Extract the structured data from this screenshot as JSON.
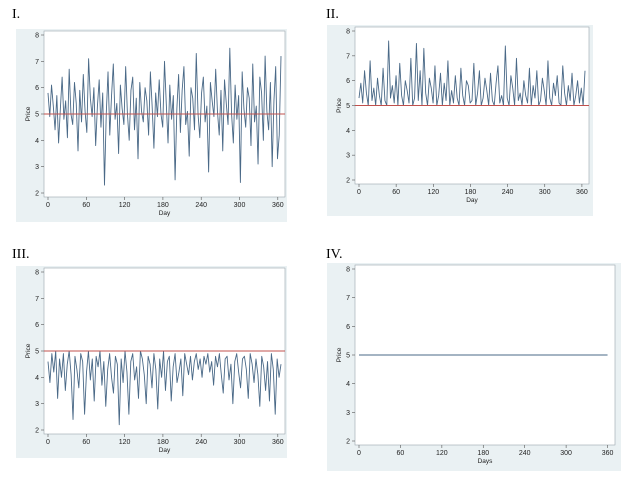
{
  "colors": {
    "outer_bg": "#eaf1f3",
    "plot_bg": "#ffffff",
    "series": "#4a6987",
    "reference": "#c0504d"
  },
  "chart_data": [
    {
      "type": "line",
      "panel_label": "I.",
      "xlabel": "Day",
      "ylabel": "Price",
      "xlim": [
        0,
        365
      ],
      "ylim": [
        2,
        8
      ],
      "xticks": [
        0,
        60,
        120,
        180,
        240,
        300,
        360
      ],
      "yticks": [
        2,
        3,
        4,
        5,
        6,
        7,
        8
      ],
      "reference_line": 5,
      "grid": false,
      "series": [
        {
          "values": [
            5.8,
            4.9,
            6.1,
            5.3,
            4.4,
            5.7,
            3.9,
            5.2,
            6.4,
            4.8,
            5.5,
            4.1,
            6.7,
            5.0,
            4.6,
            6.2,
            5.4,
            3.6,
            5.9,
            4.7,
            6.5,
            5.1,
            4.3,
            7.1,
            5.6,
            4.9,
            6.0,
            3.8,
            5.3,
            6.3,
            4.5,
            5.8,
            2.3,
            5.0,
            6.6,
            4.2,
            5.7,
            6.9,
            4.8,
            5.4,
            3.5,
            6.1,
            5.2,
            4.6,
            6.8,
            5.0,
            4.0,
            5.9,
            6.4,
            4.4,
            5.6,
            3.3,
            6.2,
            5.1,
            4.7,
            6.0,
            5.5,
            4.2,
            6.6,
            5.3,
            3.7,
            5.8,
            4.9,
            6.3,
            5.0,
            4.5,
            7.0,
            5.4,
            3.9,
            6.1,
            4.8,
            5.7,
            2.5,
            5.2,
            6.5,
            4.3,
            5.9,
            6.8,
            4.6,
            5.1,
            3.4,
            6.0,
            5.6,
            4.4,
            7.3,
            5.0,
            4.1,
            5.8,
            6.4,
            4.7,
            5.3,
            2.8,
            6.2,
            5.5,
            4.9,
            6.7,
            5.1,
            4.2,
            5.9,
            3.6,
            6.3,
            5.4,
            4.6,
            7.5,
            5.0,
            3.9,
            6.1,
            4.8,
            5.7,
            2.4,
            6.6,
            5.2,
            4.5,
            6.0,
            5.6,
            3.8,
            6.9,
            4.7,
            5.3,
            3.1,
            6.4,
            5.8,
            4.0,
            7.2,
            5.1,
            4.4,
            6.2,
            3.0,
            5.5,
            6.8,
            3.3,
            4.2,
            7.2
          ]
        }
      ]
    },
    {
      "type": "line",
      "panel_label": "II.",
      "xlabel": "Day",
      "ylabel": "Price",
      "xlim": [
        0,
        365
      ],
      "ylim": [
        2,
        8
      ],
      "xticks": [
        0,
        60,
        120,
        180,
        240,
        300,
        360
      ],
      "yticks": [
        2,
        3,
        4,
        5,
        6,
        7,
        8
      ],
      "reference_line": 5,
      "grid": false,
      "series": [
        {
          "values": [
            5.3,
            5.9,
            5.1,
            6.4,
            5.5,
            5.0,
            6.8,
            5.2,
            5.7,
            5.0,
            6.1,
            5.4,
            5.0,
            6.5,
            5.2,
            5.0,
            7.6,
            5.3,
            5.8,
            5.1,
            6.2,
            5.0,
            6.7,
            5.4,
            5.0,
            6.0,
            5.6,
            5.1,
            6.9,
            5.0,
            5.3,
            7.5,
            5.2,
            6.4,
            5.0,
            7.3,
            5.5,
            5.0,
            6.1,
            5.7,
            5.1,
            6.6,
            5.0,
            5.4,
            6.3,
            5.0,
            5.9,
            5.2,
            6.8,
            5.0,
            5.6,
            5.1,
            6.2,
            5.3,
            5.0,
            6.5,
            5.4,
            5.0,
            6.0,
            5.8,
            5.1,
            5.2,
            6.7,
            5.0,
            5.5,
            6.4,
            5.0,
            5.3,
            6.1,
            5.6,
            5.0,
            6.3,
            5.2,
            5.0,
            5.9,
            6.6,
            5.1,
            5.4,
            5.0,
            7.4,
            5.3,
            5.0,
            6.2,
            5.7,
            5.0,
            6.9,
            5.2,
            5.5,
            5.0,
            6.0,
            5.4,
            5.1,
            6.5,
            5.0,
            5.8,
            5.3,
            6.4,
            5.0,
            5.2,
            6.1,
            5.6,
            5.0,
            6.8,
            5.3,
            5.0,
            5.9,
            5.4,
            6.2,
            5.1,
            5.0,
            6.6,
            5.5,
            5.0,
            5.8,
            5.2,
            6.3,
            5.0,
            5.4,
            6.0,
            5.1,
            5.7,
            5.0,
            6.4
          ]
        }
      ]
    },
    {
      "type": "line",
      "panel_label": "III.",
      "xlabel": "Day",
      "ylabel": "Price",
      "xlim": [
        0,
        365
      ],
      "ylim": [
        2,
        8
      ],
      "xticks": [
        0,
        60,
        120,
        180,
        240,
        300,
        360
      ],
      "yticks": [
        2,
        3,
        4,
        5,
        6,
        7,
        8
      ],
      "reference_line": 5,
      "grid": false,
      "series": [
        {
          "values": [
            4.6,
            3.8,
            4.9,
            4.2,
            5.0,
            3.2,
            4.7,
            4.0,
            4.9,
            3.5,
            4.5,
            5.0,
            4.1,
            2.4,
            4.8,
            4.3,
            3.6,
            4.9,
            4.6,
            2.6,
            4.2,
            5.0,
            3.9,
            4.7,
            3.1,
            4.8,
            4.4,
            5.0,
            3.7,
            4.6,
            2.9,
            4.3,
            4.9,
            4.0,
            3.4,
            4.8,
            4.5,
            2.2,
            4.7,
            3.8,
            5.0,
            4.2,
            2.6,
            4.6,
            4.9,
            3.9,
            4.4,
            3.2,
            5.0,
            4.7,
            4.1,
            3.0,
            4.8,
            4.5,
            3.6,
            4.9,
            4.3,
            2.8,
            4.7,
            4.0,
            5.0,
            3.5,
            4.6,
            4.8,
            3.1,
            4.4,
            4.9,
            3.8,
            4.2,
            4.7,
            3.3,
            4.9,
            4.5,
            4.1,
            4.8,
            3.9,
            4.6,
            4.9,
            4.3,
            4.7,
            4.0,
            4.8,
            4.5,
            4.9,
            4.2,
            4.6,
            3.7,
            4.8,
            4.4,
            4.9,
            4.1,
            3.4,
            4.7,
            4.8,
            3.9,
            4.5,
            3.0,
            4.6,
            4.9,
            4.2,
            3.6,
            4.7,
            4.8,
            4.3,
            3.2,
            4.9,
            4.5,
            3.8,
            4.7,
            4.1,
            2.9,
            4.8,
            4.4,
            3.5,
            4.6,
            3.1,
            4.9,
            4.3,
            2.6,
            4.7,
            4.0,
            4.5
          ]
        }
      ]
    },
    {
      "type": "line",
      "panel_label": "IV.",
      "xlabel": "Days",
      "ylabel": "Price",
      "xlim": [
        0,
        365
      ],
      "ylim": [
        2,
        8
      ],
      "xticks": [
        0,
        60,
        120,
        180,
        240,
        300,
        360
      ],
      "yticks": [
        2,
        3,
        4,
        5,
        6,
        7,
        8
      ],
      "reference_line": null,
      "grid": false,
      "series": [
        {
          "values": [
            5,
            5
          ]
        }
      ]
    }
  ]
}
